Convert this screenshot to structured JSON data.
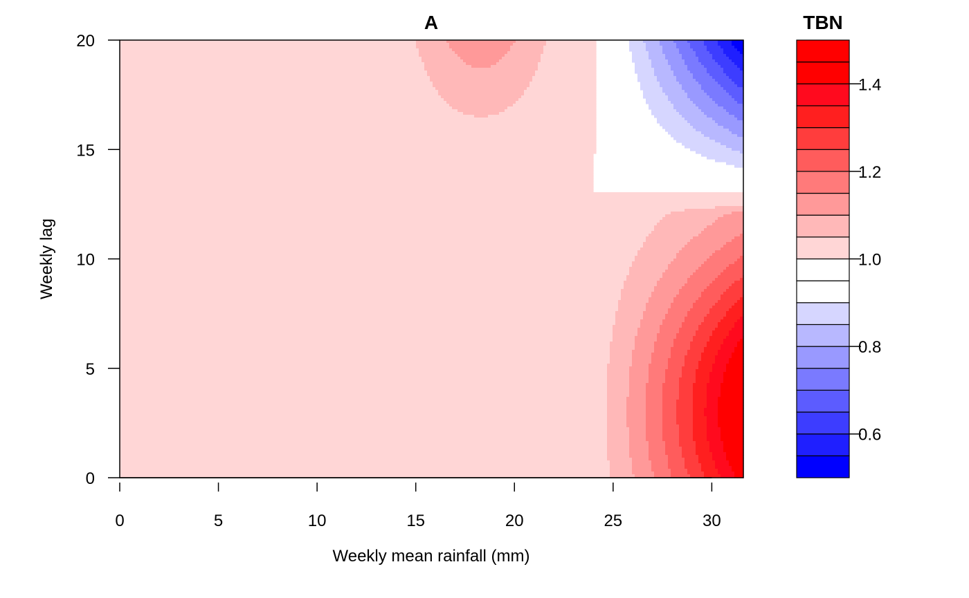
{
  "chart_data": {
    "type": "contour",
    "title": "A",
    "xlabel": "Weekly mean rainfall (mm)",
    "ylabel": "Weekly lag",
    "xlim": [
      0,
      31.6
    ],
    "ylim": [
      0,
      20
    ],
    "x_ticks": [
      "0",
      "5",
      "10",
      "15",
      "20",
      "25",
      "30"
    ],
    "y_ticks": [
      "0",
      "5",
      "10",
      "15",
      "20"
    ],
    "legend": {
      "title": "TBN",
      "range": [
        0.5,
        1.5
      ],
      "ticks": [
        "0.6",
        "0.8",
        "1.0",
        "1.2",
        "1.4"
      ],
      "levels": [
        0.5,
        0.55,
        0.6,
        0.65,
        0.7,
        0.75,
        0.8,
        0.85,
        0.9,
        0.95,
        1.0,
        1.05,
        1.1,
        1.15,
        1.2,
        1.25,
        1.3,
        1.35,
        1.4,
        1.45,
        1.5
      ],
      "colors": [
        "#0000ff",
        "#1f1fff",
        "#3d3dff",
        "#5c5cff",
        "#7a7aff",
        "#9999ff",
        "#b8b8ff",
        "#d6d6ff",
        "#ffffff",
        "#ffffff",
        "#ffd6d6",
        "#ffb8b8",
        "#ff9999",
        "#ff7a7a",
        "#ff5c5c",
        "#ff3d3d",
        "#ff1f1f",
        "#ff0a1e",
        "#ff0000",
        "#ff0000"
      ],
      "placement": "right"
    },
    "regions": [
      {
        "name": "red-peak-high-rainfall-short-lag",
        "x_range": [
          23,
          31.6
        ],
        "y_range": [
          0,
          12
        ],
        "peak_value": 1.5,
        "peak_at": [
          31.6,
          3
        ]
      },
      {
        "name": "blue-low-high-rainfall-long-lag",
        "x_range": [
          24.3,
          31.6
        ],
        "y_range": [
          13.4,
          20
        ],
        "min_value": 0.5,
        "min_at": [
          31.6,
          20
        ]
      },
      {
        "name": "light-red-mid-rainfall-long-lag",
        "x_range": [
          14.4,
          22
        ],
        "y_range": [
          14.4,
          20
        ],
        "peak_value": 1.15,
        "peak_at": [
          18.5,
          20
        ]
      }
    ]
  }
}
